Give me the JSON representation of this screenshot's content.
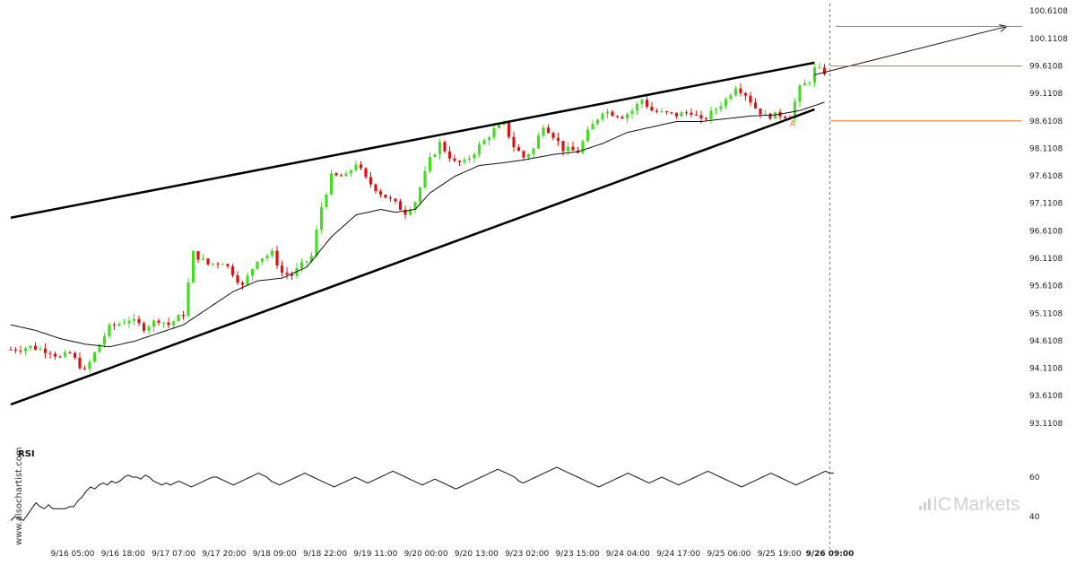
{
  "chart_data": [
    {
      "type": "candlestick",
      "title": "",
      "ylim": [
        92.88,
        100.68
      ],
      "y_ticks": [
        "100.6108",
        "100.1108",
        "99.6108",
        "99.1108",
        "98.6108",
        "98.1108",
        "97.6108",
        "97.1108",
        "96.6108",
        "96.1108",
        "95.6108",
        "95.1108",
        "94.6108",
        "94.1108",
        "93.6108",
        "93.1108"
      ],
      "x_ticks": [
        "9/16 05:00",
        "9/16 18:00",
        "9/17 07:00",
        "9/17 20:00",
        "9/18 09:00",
        "9/18 22:00",
        "9/19 11:00",
        "9/20 00:00",
        "9/20 13:00",
        "9/23 02:00",
        "9/23 15:00",
        "9/24 04:00",
        "9/24 17:00",
        "9/25 06:00",
        "9/25 19:00",
        "9/26 09:00"
      ],
      "highlighted_x_tick": "9/26 09:00",
      "up_color": "#44dd22",
      "down_color": "#e01010",
      "price_path": [
        [
          0,
          94.45
        ],
        [
          4,
          94.5
        ],
        [
          8,
          94.42
        ],
        [
          10,
          94.3
        ],
        [
          12,
          94.38
        ],
        [
          15,
          94.05
        ],
        [
          18,
          94.55
        ],
        [
          20,
          94.85
        ],
        [
          24,
          95.0
        ],
        [
          27,
          94.85
        ],
        [
          30,
          95.0
        ],
        [
          32,
          94.9
        ],
        [
          35,
          95.1
        ],
        [
          37,
          96.2
        ],
        [
          40,
          96.0
        ],
        [
          43,
          96.05
        ],
        [
          45,
          95.85
        ],
        [
          47,
          95.6
        ],
        [
          50,
          96.1
        ],
        [
          53,
          96.2
        ],
        [
          55,
          95.85
        ],
        [
          57,
          95.8
        ],
        [
          58,
          95.9
        ],
        [
          61,
          96.15
        ],
        [
          63,
          97.05
        ],
        [
          65,
          97.6
        ],
        [
          68,
          97.6
        ],
        [
          70,
          97.85
        ],
        [
          72,
          97.55
        ],
        [
          75,
          97.3
        ],
        [
          78,
          97.1
        ],
        [
          80,
          96.95
        ],
        [
          82,
          97.15
        ],
        [
          85,
          97.9
        ],
        [
          87,
          98.2
        ],
        [
          90,
          97.85
        ],
        [
          92,
          97.85
        ],
        [
          95,
          98.15
        ],
        [
          98,
          98.45
        ],
        [
          100,
          98.55
        ],
        [
          102,
          98.15
        ],
        [
          104,
          97.95
        ],
        [
          106,
          98.1
        ],
        [
          108,
          98.55
        ],
        [
          110,
          98.35
        ],
        [
          112,
          98.1
        ],
        [
          115,
          98.05
        ],
        [
          117,
          98.4
        ],
        [
          120,
          98.8
        ],
        [
          122,
          98.75
        ],
        [
          124,
          98.7
        ],
        [
          126,
          98.8
        ],
        [
          128,
          99.0
        ],
        [
          130,
          98.8
        ],
        [
          132,
          98.75
        ],
        [
          135,
          98.72
        ],
        [
          138,
          98.78
        ],
        [
          140,
          98.6
        ],
        [
          142,
          98.75
        ],
        [
          145,
          99.0
        ],
        [
          147,
          99.25
        ],
        [
          149,
          99.1
        ],
        [
          151,
          98.85
        ],
        [
          153,
          98.7
        ],
        [
          156,
          98.72
        ],
        [
          158,
          98.7
        ],
        [
          160,
          99.2
        ],
        [
          162,
          99.35
        ],
        [
          163,
          99.55
        ],
        [
          165,
          99.5
        ]
      ],
      "moving_average": [
        [
          0,
          94.9
        ],
        [
          5,
          94.8
        ],
        [
          10,
          94.65
        ],
        [
          15,
          94.55
        ],
        [
          20,
          94.5
        ],
        [
          25,
          94.6
        ],
        [
          30,
          94.75
        ],
        [
          35,
          94.9
        ],
        [
          40,
          95.2
        ],
        [
          45,
          95.5
        ],
        [
          50,
          95.7
        ],
        [
          55,
          95.75
        ],
        [
          60,
          95.95
        ],
        [
          65,
          96.5
        ],
        [
          70,
          96.9
        ],
        [
          75,
          97.0
        ],
        [
          78,
          96.95
        ],
        [
          82,
          97.0
        ],
        [
          85,
          97.3
        ],
        [
          90,
          97.6
        ],
        [
          95,
          97.8
        ],
        [
          100,
          97.85
        ],
        [
          104,
          97.9
        ],
        [
          110,
          98.0
        ],
        [
          115,
          98.05
        ],
        [
          120,
          98.2
        ],
        [
          125,
          98.4
        ],
        [
          130,
          98.5
        ],
        [
          135,
          98.6
        ],
        [
          140,
          98.6
        ],
        [
          145,
          98.65
        ],
        [
          150,
          98.7
        ],
        [
          155,
          98.72
        ],
        [
          160,
          98.8
        ],
        [
          165,
          98.95
        ]
      ],
      "upper_channel_line": {
        "from": [
          0,
          96.85
        ],
        "to": [
          163,
          99.67
        ]
      },
      "lower_channel_line": {
        "from": [
          0,
          93.45
        ],
        "to": [
          163,
          98.82
        ]
      },
      "projection_arrow": {
        "from": [
          163,
          99.45
        ],
        "to": [
          202,
          100.33
        ]
      },
      "horizontal_levels": [
        {
          "value": 99.61,
          "color": "#e0701a"
        },
        {
          "value": 98.61,
          "color": "#e0701a"
        },
        {
          "value": 100.33,
          "color": "#e0701a",
          "style": "target"
        }
      ],
      "annotation": {
        "text": "A",
        "x": 158,
        "y": 98.52,
        "color": "#e0701a"
      },
      "grid": false
    },
    {
      "type": "line",
      "title": "RSI",
      "ylim": [
        30,
        70
      ],
      "y_ticks": [
        "60",
        "40"
      ],
      "values": [
        38,
        40,
        39,
        38,
        41,
        44,
        47,
        45,
        44,
        46,
        44,
        44,
        44,
        44,
        45,
        45,
        48,
        50,
        53,
        55,
        54,
        56,
        57,
        56,
        58,
        57,
        58,
        60,
        61,
        60,
        60,
        59,
        61,
        60,
        58,
        57,
        56,
        57,
        56,
        57,
        58,
        57,
        56,
        55,
        56,
        57,
        58,
        59,
        60,
        60,
        59,
        58,
        57,
        56,
        57,
        58,
        59,
        60,
        61,
        62,
        61,
        60,
        58,
        57,
        56,
        57,
        58,
        59,
        60,
        61,
        62,
        61,
        60,
        59,
        58,
        57,
        56,
        55,
        56,
        57,
        58,
        59,
        60,
        59,
        58,
        57,
        58,
        59,
        60,
        61,
        62,
        63,
        62,
        61,
        60,
        59,
        58,
        57,
        56,
        57,
        58,
        59,
        58,
        57,
        56,
        55,
        54,
        55,
        56,
        57,
        58,
        59,
        60,
        61,
        62,
        63,
        64,
        63,
        62,
        61,
        60,
        58,
        57,
        58,
        59,
        60,
        61,
        62,
        63,
        64,
        65,
        64,
        63,
        62,
        61,
        60,
        59,
        58,
        57,
        56,
        55,
        56,
        57,
        58,
        59,
        60,
        61,
        62,
        61,
        60,
        59,
        58,
        57,
        58,
        59,
        60,
        59,
        58,
        57,
        56,
        57,
        58,
        59,
        60,
        61,
        62,
        63,
        62,
        61,
        60,
        59,
        58,
        57,
        56,
        55,
        56,
        57,
        58,
        59,
        60,
        61,
        62,
        61,
        60,
        59,
        58,
        57,
        56,
        57,
        58,
        59,
        60,
        61,
        62,
        63,
        62,
        62
      ]
    }
  ],
  "rsi_label": "RSI",
  "side_watermark": "www.alsochartist.com",
  "brand": {
    "name_ic": "IC",
    "name_rest": "Markets",
    "color": "#cfd3d6"
  }
}
